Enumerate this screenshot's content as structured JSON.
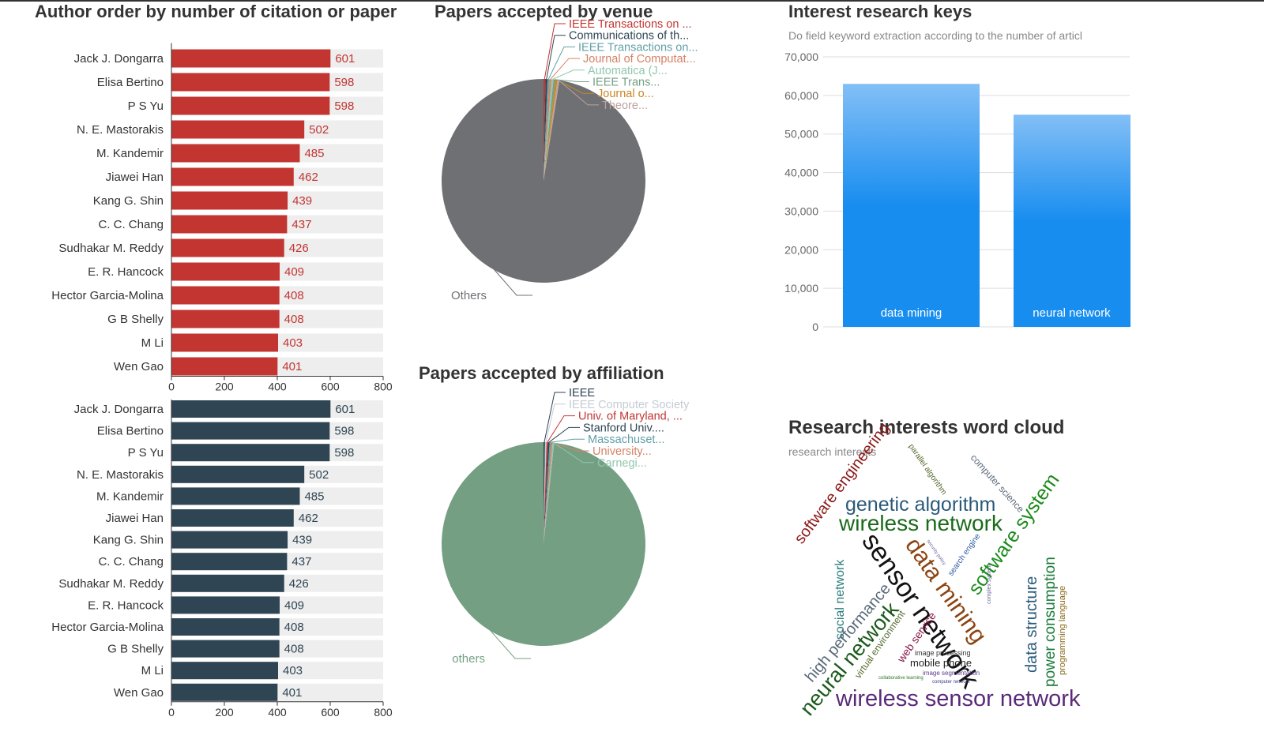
{
  "theme": {
    "top_line_color": "#333333"
  },
  "author_panel": {
    "title": "Author order by number of citation or paper",
    "charts": [
      {
        "type": "bar",
        "orientation": "horizontal",
        "bar_color": "#c23531",
        "label_color": "#c23531",
        "background_bar_color": "#eeeeee",
        "categories": [
          "Jack J. Dongarra",
          "Elisa Bertino",
          "P S Yu",
          "N. E. Mastorakis",
          "M. Kandemir",
          "Jiawei Han",
          "Kang G. Shin",
          "C. C. Chang",
          "Sudhakar M. Reddy",
          "E. R. Hancock",
          "Hector Garcia-Molina",
          "G B Shelly",
          "M Li",
          "Wen Gao"
        ],
        "values": [
          601,
          598,
          598,
          502,
          485,
          462,
          439,
          437,
          426,
          409,
          408,
          408,
          403,
          401
        ],
        "xlim": [
          0,
          800
        ],
        "xticks": [
          0,
          200,
          400,
          600,
          800
        ]
      },
      {
        "type": "bar",
        "orientation": "horizontal",
        "bar_color": "#2f4554",
        "label_color": "#2f4554",
        "background_bar_color": "#eeeeee",
        "categories": [
          "Jack J. Dongarra",
          "Elisa Bertino",
          "P S Yu",
          "N. E. Mastorakis",
          "M. Kandemir",
          "Jiawei Han",
          "Kang G. Shin",
          "C. C. Chang",
          "Sudhakar M. Reddy",
          "E. R. Hancock",
          "Hector Garcia-Molina",
          "G B Shelly",
          "M Li",
          "Wen Gao"
        ],
        "values": [
          601,
          598,
          598,
          502,
          485,
          462,
          439,
          437,
          426,
          409,
          408,
          408,
          403,
          401
        ],
        "xlim": [
          0,
          800
        ],
        "xticks": [
          0,
          200,
          400,
          600,
          800
        ]
      }
    ]
  },
  "venue_panel": {
    "title": "Papers accepted by venue",
    "big_label": "Others",
    "big_color": "#6e7074",
    "small_labels": [
      {
        "text": "IEEE Transactions on ...",
        "color": "#c23531"
      },
      {
        "text": "Communications of th...",
        "color": "#2f4554"
      },
      {
        "text": "IEEE Transactions on...",
        "color": "#61a0a8"
      },
      {
        "text": "Journal of Computat...",
        "color": "#d48265"
      },
      {
        "text": "Automatica (J...",
        "color": "#91c7ae"
      },
      {
        "text": "IEEE Trans...",
        "color": "#749f83"
      },
      {
        "text": "Journal o...",
        "color": "#ca8622"
      },
      {
        "text": "Theore...",
        "color": "#bda29a"
      }
    ]
  },
  "affiliation_panel": {
    "title": "Papers accepted by affiliation",
    "big_label": "others",
    "big_color": "#749f83",
    "small_labels": [
      {
        "text": "IEEE",
        "color": "#2f4554"
      },
      {
        "text": "IEEE Computer Society",
        "color": "#c4ccd3"
      },
      {
        "text": "Univ. of Maryland, ...",
        "color": "#c23531"
      },
      {
        "text": "Stanford Univ....",
        "color": "#2f4554"
      },
      {
        "text": "Massachuset...",
        "color": "#61a0a8"
      },
      {
        "text": "University...",
        "color": "#d48265"
      },
      {
        "text": "Carnegi...",
        "color": "#91c7ae"
      }
    ]
  },
  "interest_panel": {
    "title": "Interest research keys",
    "subtitle": "Do field keyword extraction according to the number of articl",
    "chart_data": {
      "type": "bar",
      "categories": [
        "data mining",
        "neural network"
      ],
      "values": [
        63000,
        55000
      ],
      "ylim": [
        0,
        70000
      ],
      "yticks": [
        "0",
        "10,000",
        "20,000",
        "30,000",
        "40,000",
        "50,000",
        "60,000",
        "70,000"
      ],
      "bar_color_top": "#83bff6",
      "bar_color_bottom": "#188df0"
    }
  },
  "wordcloud_panel": {
    "title": "Research interests word cloud",
    "subtitle": "research interests",
    "words": [
      {
        "text": "software engineering",
        "color": "#8b1a1a"
      },
      {
        "text": "parallel algorithm",
        "color": "#556b2f"
      },
      {
        "text": "computer science",
        "color": "#5a6a7a"
      },
      {
        "text": "genetic algorithm",
        "color": "#2a5a7a"
      },
      {
        "text": "wireless network",
        "color": "#1a6a1a"
      },
      {
        "text": "software system",
        "color": "#1a8a1a"
      },
      {
        "text": "sensor network",
        "color": "#111111"
      },
      {
        "text": "data mining",
        "color": "#8b4513"
      },
      {
        "text": "social network",
        "color": "#2a7a7a"
      },
      {
        "text": "high performance",
        "color": "#5a6a7a"
      },
      {
        "text": "neural network",
        "color": "#1a5a1a"
      },
      {
        "text": "virtual environment",
        "color": "#556b2f"
      },
      {
        "text": "web service",
        "color": "#8b1a4a"
      },
      {
        "text": "search engine",
        "color": "#2a5aa0"
      },
      {
        "text": "security policy",
        "color": "#6a6a9a"
      },
      {
        "text": "complex system",
        "color": "#6a6a9a"
      },
      {
        "text": "data structure",
        "color": "#2a5a7a"
      },
      {
        "text": "power consumption",
        "color": "#1a7a3a"
      },
      {
        "text": "programming language",
        "color": "#8a6a1a"
      },
      {
        "text": "image processing",
        "color": "#333333"
      },
      {
        "text": "mobile phone",
        "color": "#222222"
      },
      {
        "text": "image segmentation",
        "color": "#5a3a8a"
      },
      {
        "text": "collaborative learning",
        "color": "#2a7a2a"
      },
      {
        "text": "computer network",
        "color": "#3a3a8a"
      },
      {
        "text": "wireless sensor network",
        "color": "#5a2a7a"
      }
    ]
  }
}
